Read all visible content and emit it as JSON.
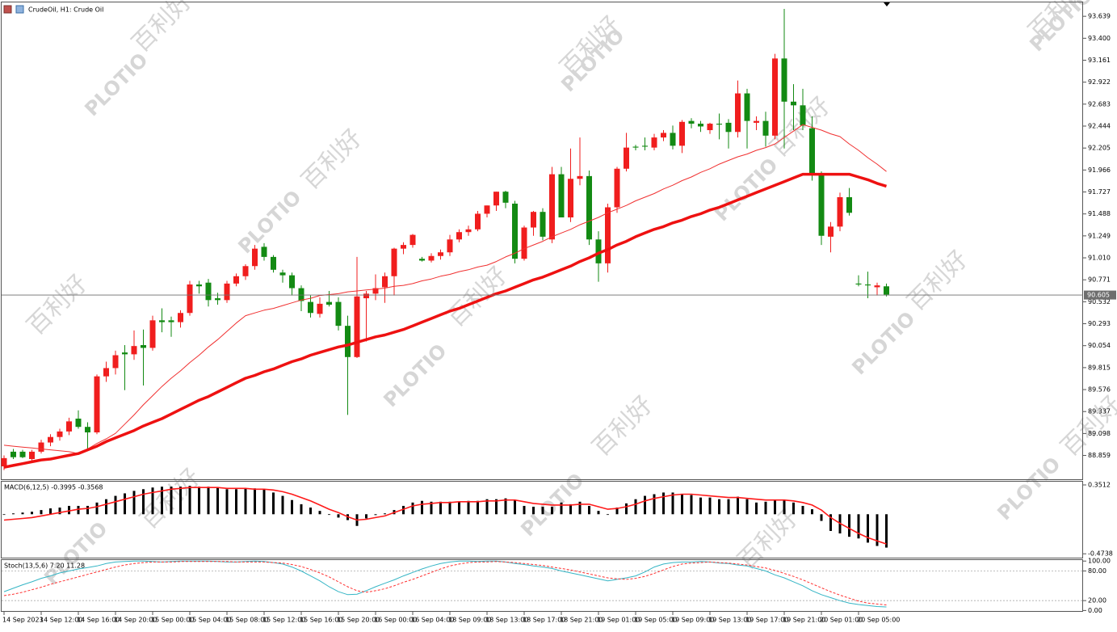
{
  "chart_data": [
    {
      "type": "candlestick",
      "title": "CrudeOil, H1:  Crude Oil",
      "categories": [
        "14 Sep 2023",
        null,
        null,
        null,
        "14 Sep 12:00",
        null,
        null,
        null,
        "14 Sep 16:00",
        null,
        null,
        null,
        "14 Sep 20:00",
        null,
        null,
        null,
        "15 Sep 00:00",
        null,
        null,
        null,
        "15 Sep 04:00",
        null,
        null,
        null,
        "15 Sep 08:00",
        null,
        null,
        null,
        "15 Sep 12:00",
        null,
        null,
        null,
        "15 Sep 16:00",
        null,
        null,
        null,
        "15 Sep 20:00",
        null,
        null,
        null,
        "16 Sep 00:00",
        null,
        null,
        null,
        "16 Sep 04:00",
        null,
        null,
        null,
        "18 Sep 09:00",
        null,
        null,
        null,
        "18 Sep 13:00",
        null,
        null,
        null,
        "18 Sep 17:00",
        null,
        null,
        null,
        "18 Sep 21:00",
        null,
        null,
        null,
        "19 Sep 01:00",
        null,
        null,
        null,
        "19 Sep 05:00",
        null,
        null,
        null,
        "19 Sep 09:00",
        null,
        null,
        null,
        "19 Sep 13:00",
        null,
        null,
        null,
        "19 Sep 17:00",
        null,
        null,
        null,
        "19 Sep 21:00",
        null,
        null,
        null,
        "20 Sep 01:00",
        null,
        null,
        null,
        "20 Sep 05:00",
        null,
        null,
        null
      ],
      "open": [
        88.74,
        88.9,
        88.9,
        88.82,
        88.9,
        89.0,
        89.06,
        89.12,
        89.26,
        89.17,
        89.11,
        89.72,
        89.81,
        89.98,
        89.96,
        90.06,
        90.03,
        90.33,
        90.33,
        90.31,
        90.41,
        90.72,
        90.74,
        90.57,
        90.55,
        90.73,
        90.81,
        90.92,
        91.13,
        91.02,
        90.85,
        90.82,
        90.68,
        90.53,
        90.4,
        90.53,
        90.53,
        90.27,
        89.93,
        90.57,
        90.62,
        90.69,
        90.81,
        91.11,
        91.15,
        91.0,
        90.98,
        91.03,
        91.07,
        91.21,
        91.29,
        91.32,
        91.49,
        91.58,
        91.73,
        91.6,
        91.0,
        91.34,
        91.51,
        91.21,
        91.92,
        91.45,
        91.87,
        91.9,
        91.21,
        90.95,
        91.56,
        91.98,
        92.22,
        92.23,
        92.21,
        92.32,
        92.37,
        92.23,
        92.5,
        92.47,
        92.4,
        92.47,
        92.48,
        92.38,
        92.8,
        92.48,
        92.5,
        92.34,
        93.18,
        92.71,
        92.67,
        92.42,
        91.93,
        91.24,
        91.35,
        91.67,
        90.73,
        90.72,
        90.69,
        90.7
      ],
      "high": [
        88.86,
        88.93,
        88.92,
        88.92,
        89.03,
        89.09,
        89.15,
        89.27,
        89.35,
        89.22,
        89.74,
        89.88,
        90.0,
        90.06,
        90.22,
        90.23,
        90.38,
        90.46,
        90.37,
        90.44,
        90.76,
        90.76,
        90.78,
        90.63,
        90.76,
        90.84,
        90.94,
        91.15,
        91.17,
        91.04,
        90.88,
        90.85,
        90.71,
        90.6,
        90.58,
        90.65,
        90.58,
        90.38,
        91.02,
        90.65,
        90.83,
        90.85,
        91.12,
        91.18,
        91.27,
        91.02,
        91.06,
        91.1,
        91.26,
        91.32,
        91.36,
        91.52,
        91.58,
        91.73,
        91.74,
        91.63,
        91.36,
        91.52,
        91.55,
        92.0,
        92.0,
        92.2,
        92.32,
        91.96,
        91.3,
        91.6,
        92.0,
        92.37,
        92.24,
        92.32,
        92.36,
        92.4,
        92.45,
        92.51,
        92.53,
        92.5,
        92.48,
        92.58,
        92.52,
        92.94,
        92.85,
        92.55,
        92.6,
        93.23,
        93.72,
        92.9,
        92.85,
        92.55,
        91.95,
        91.4,
        91.72,
        91.77,
        90.82,
        90.86,
        90.74,
        90.73
      ],
      "low": [
        88.7,
        88.82,
        88.83,
        88.79,
        88.88,
        88.96,
        89.02,
        89.08,
        89.15,
        88.93,
        89.09,
        89.66,
        89.74,
        89.57,
        89.9,
        89.62,
        90.0,
        90.2,
        90.15,
        90.25,
        90.38,
        90.62,
        90.48,
        90.5,
        90.52,
        90.7,
        90.77,
        90.88,
        90.98,
        90.85,
        90.74,
        90.6,
        90.43,
        90.36,
        90.36,
        90.48,
        90.22,
        89.3,
        89.92,
        90.1,
        90.55,
        90.52,
        90.6,
        91.05,
        91.12,
        90.97,
        90.96,
        90.99,
        91.03,
        91.18,
        91.25,
        91.3,
        91.45,
        91.52,
        91.55,
        90.95,
        90.98,
        91.25,
        91.2,
        91.17,
        91.45,
        91.4,
        91.8,
        91.15,
        90.75,
        90.85,
        91.5,
        91.95,
        92.18,
        92.18,
        92.18,
        92.28,
        92.19,
        92.15,
        92.42,
        92.38,
        92.36,
        92.3,
        92.2,
        92.32,
        92.2,
        92.4,
        92.22,
        92.3,
        92.2,
        92.4,
        92.4,
        91.85,
        91.15,
        91.07,
        91.3,
        91.47,
        90.7,
        90.57,
        90.6,
        90.59
      ],
      "close": [
        88.83,
        88.84,
        88.84,
        88.9,
        89.0,
        89.06,
        89.12,
        89.23,
        89.17,
        89.11,
        89.72,
        89.81,
        89.95,
        89.96,
        90.05,
        90.03,
        90.33,
        90.31,
        90.31,
        90.41,
        90.72,
        90.7,
        90.55,
        90.55,
        90.73,
        90.81,
        90.92,
        91.11,
        91.02,
        90.88,
        90.82,
        90.68,
        90.54,
        90.41,
        90.51,
        90.5,
        90.27,
        89.93,
        90.59,
        90.62,
        90.68,
        90.81,
        91.11,
        91.15,
        91.26,
        90.98,
        91.03,
        91.07,
        91.21,
        91.29,
        91.32,
        91.49,
        91.58,
        91.73,
        91.61,
        91.0,
        91.34,
        91.51,
        91.24,
        91.92,
        91.45,
        91.87,
        91.9,
        91.21,
        90.95,
        91.56,
        91.98,
        92.21,
        92.21,
        92.22,
        92.32,
        92.37,
        92.23,
        92.49,
        92.47,
        92.44,
        92.47,
        92.46,
        92.38,
        92.8,
        92.5,
        92.5,
        92.34,
        93.18,
        92.71,
        92.67,
        92.45,
        91.93,
        91.25,
        91.35,
        91.67,
        91.5,
        90.72,
        90.71,
        90.71,
        90.61
      ],
      "up_color": "#f01e1e",
      "down_color": "#138a13",
      "series": [
        {
          "color": "#f03030",
          "width": 1,
          "values": [
            88.97,
            88.96,
            88.95,
            88.94,
            88.93,
            88.92,
            88.91,
            88.9,
            88.88,
            88.93,
            88.99,
            89.04,
            89.1,
            89.2,
            89.3,
            89.41,
            89.51,
            89.61,
            89.7,
            89.78,
            89.87,
            89.95,
            90.04,
            90.12,
            90.21,
            90.3,
            90.38,
            90.41,
            90.44,
            90.46,
            90.49,
            90.52,
            90.55,
            90.57,
            90.6,
            90.61,
            90.62,
            90.64,
            90.65,
            90.66,
            90.67,
            90.68,
            90.7,
            90.71,
            90.73,
            90.76,
            90.78,
            90.81,
            90.83,
            90.86,
            90.88,
            90.91,
            90.93,
            90.97,
            91.02,
            91.06,
            91.11,
            91.15,
            91.19,
            91.24,
            91.28,
            91.32,
            91.37,
            91.41,
            91.45,
            91.5,
            91.54,
            91.58,
            91.63,
            91.67,
            91.71,
            91.76,
            91.8,
            91.85,
            91.89,
            91.94,
            91.98,
            92.03,
            92.07,
            92.11,
            92.14,
            92.18,
            92.21,
            92.25,
            92.32,
            92.39,
            92.46,
            92.43,
            92.4,
            92.36,
            92.33,
            92.25,
            92.18,
            92.1,
            92.03,
            91.95
          ]
        },
        {
          "color": "#ee1111",
          "width": 3.5,
          "values": [
            88.73,
            88.75,
            88.77,
            88.79,
            88.81,
            88.82,
            88.84,
            88.86,
            88.88,
            88.92,
            88.96,
            89.01,
            89.05,
            89.09,
            89.13,
            89.18,
            89.22,
            89.26,
            89.31,
            89.36,
            89.41,
            89.46,
            89.5,
            89.55,
            89.6,
            89.65,
            89.7,
            89.73,
            89.77,
            89.8,
            89.84,
            89.88,
            89.91,
            89.95,
            89.98,
            90.01,
            90.04,
            90.06,
            90.09,
            90.12,
            90.15,
            90.17,
            90.2,
            90.23,
            90.27,
            90.31,
            90.35,
            90.39,
            90.43,
            90.46,
            90.5,
            90.54,
            90.58,
            90.62,
            90.65,
            90.69,
            90.73,
            90.77,
            90.8,
            90.84,
            90.88,
            90.92,
            90.97,
            91.01,
            91.06,
            91.1,
            91.15,
            91.19,
            91.24,
            91.28,
            91.32,
            91.35,
            91.39,
            91.42,
            91.46,
            91.49,
            91.53,
            91.56,
            91.6,
            91.64,
            91.68,
            91.72,
            91.76,
            91.8,
            91.84,
            91.88,
            91.92,
            91.92,
            91.92,
            91.92,
            91.92,
            91.92,
            91.89,
            91.86,
            91.82,
            91.79
          ]
        }
      ],
      "ylim": [
        88.6,
        93.79
      ],
      "yticks": [
        93.639,
        {
          "value": 93.4,
          "label": "93.400"
        },
        93.161,
        92.922,
        92.683,
        92.444,
        92.205,
        91.966,
        91.727,
        91.488,
        91.249,
        {
          "value": 91.01,
          "label": "91.010"
        },
        90.771,
        90.532,
        90.293,
        90.054,
        89.815,
        89.576,
        89.337,
        89.098,
        88.859
      ],
      "current_price": 90.605,
      "current_price_color": "#6e6e6e"
    },
    {
      "type": "macd",
      "title": "MACD(6,12,5) -0.3995 -0.3568",
      "color": "#000000",
      "values": [
        0.0,
        0.01,
        0.02,
        0.03,
        0.05,
        0.07,
        0.08,
        0.1,
        0.1,
        0.1,
        0.14,
        0.18,
        0.22,
        0.25,
        0.28,
        0.3,
        0.32,
        0.33,
        0.33,
        0.33,
        0.34,
        0.33,
        0.33,
        0.32,
        0.3,
        0.3,
        0.31,
        0.31,
        0.3,
        0.26,
        0.22,
        0.17,
        0.12,
        0.08,
        0.04,
        0.0,
        -0.04,
        -0.07,
        -0.14,
        -0.05,
        -0.01,
        0.01,
        0.05,
        0.1,
        0.14,
        0.16,
        0.15,
        0.15,
        0.15,
        0.15,
        0.16,
        0.16,
        0.18,
        0.18,
        0.19,
        0.17,
        0.1,
        0.09,
        0.09,
        0.09,
        0.14,
        0.12,
        0.15,
        0.1,
        0.04,
        0.0,
        0.08,
        0.13,
        0.18,
        0.22,
        0.24,
        0.26,
        0.26,
        0.24,
        0.23,
        0.2,
        0.2,
        0.18,
        0.18,
        0.21,
        0.18,
        0.14,
        0.15,
        0.17,
        0.17,
        0.14,
        0.1,
        0.06,
        -0.08,
        -0.2,
        -0.23,
        -0.27,
        -0.29,
        -0.34,
        -0.38,
        -0.3995
      ],
      "series": [
        {
          "color": "#ff1a1a",
          "values": [
            -0.07,
            -0.06,
            -0.05,
            -0.04,
            -0.02,
            0.0,
            0.02,
            0.04,
            0.06,
            0.07,
            0.09,
            0.12,
            0.15,
            0.18,
            0.21,
            0.24,
            0.26,
            0.28,
            0.3,
            0.31,
            0.32,
            0.32,
            0.32,
            0.32,
            0.31,
            0.31,
            0.31,
            0.3,
            0.3,
            0.29,
            0.27,
            0.24,
            0.2,
            0.16,
            0.11,
            0.06,
            0.02,
            -0.03,
            -0.07,
            -0.06,
            -0.04,
            -0.02,
            0.02,
            0.06,
            0.1,
            0.12,
            0.13,
            0.14,
            0.14,
            0.15,
            0.15,
            0.15,
            0.16,
            0.16,
            0.17,
            0.17,
            0.15,
            0.13,
            0.12,
            0.11,
            0.11,
            0.11,
            0.12,
            0.12,
            0.09,
            0.06,
            0.07,
            0.09,
            0.12,
            0.16,
            0.19,
            0.21,
            0.23,
            0.24,
            0.24,
            0.23,
            0.22,
            0.21,
            0.2,
            0.2,
            0.19,
            0.18,
            0.17,
            0.17,
            0.17,
            0.16,
            0.14,
            0.11,
            0.05,
            -0.04,
            -0.11,
            -0.17,
            -0.23,
            -0.28,
            -0.32,
            -0.3568
          ]
        }
      ],
      "ylim": [
        -0.52,
        0.39
      ],
      "yticks": [
        0.3512,
        -0.4738
      ]
    },
    {
      "type": "stochastic",
      "title": "Stoch(13,5,6) 7.20 11.28",
      "series": [
        {
          "color": "#35b5c5",
          "values": [
            38,
            45,
            52,
            58,
            65,
            70,
            76,
            80,
            84,
            87,
            90,
            95,
            98,
            99,
            100,
            100,
            99,
            98,
            99,
            100,
            100,
            100,
            100,
            99,
            98,
            98,
            99,
            100,
            99,
            97,
            94,
            88,
            80,
            70,
            60,
            48,
            38,
            32,
            33,
            40,
            48,
            55,
            62,
            70,
            77,
            84,
            90,
            95,
            98,
            100,
            100,
            99,
            100,
            100,
            98,
            95,
            93,
            90,
            88,
            85,
            80,
            76,
            72,
            68,
            64,
            60,
            63,
            66,
            70,
            78,
            88,
            94,
            97,
            98,
            98,
            99,
            98,
            96,
            95,
            92,
            90,
            85,
            80,
            72,
            66,
            58,
            50,
            40,
            32,
            26,
            20,
            15,
            12,
            10,
            8,
            7.2
          ]
        },
        {
          "color": "#ff3030",
          "dashed": true,
          "values": [
            30,
            33,
            37,
            42,
            47,
            53,
            58,
            63,
            68,
            73,
            78,
            83,
            88,
            92,
            95,
            97,
            98,
            98,
            98,
            99,
            99,
            99,
            99,
            99,
            99,
            98,
            98,
            98,
            98,
            97,
            96,
            93,
            89,
            83,
            76,
            68,
            58,
            48,
            40,
            37,
            40,
            44,
            50,
            57,
            63,
            70,
            77,
            84,
            90,
            94,
            97,
            98,
            98,
            99,
            98,
            97,
            95,
            93,
            91,
            88,
            85,
            82,
            78,
            74,
            70,
            66,
            64,
            63,
            65,
            69,
            75,
            82,
            89,
            94,
            96,
            97,
            98,
            97,
            96,
            94,
            92,
            89,
            86,
            81,
            75,
            69,
            62,
            54,
            46,
            38,
            31,
            25,
            19,
            15,
            13,
            11.28
          ]
        }
      ],
      "levels": [
        80,
        20
      ],
      "ylim": [
        -1,
        102
      ],
      "yticks": [
        {
          "value": 100,
          "label": "100.00"
        },
        {
          "value": 80,
          "label": "80.00"
        },
        {
          "value": 20,
          "label": "20.00"
        },
        {
          "value": 0,
          "label": "0.00"
        }
      ]
    }
  ],
  "watermark": {
    "text": "百利好",
    "logo": "PLOTIO"
  }
}
